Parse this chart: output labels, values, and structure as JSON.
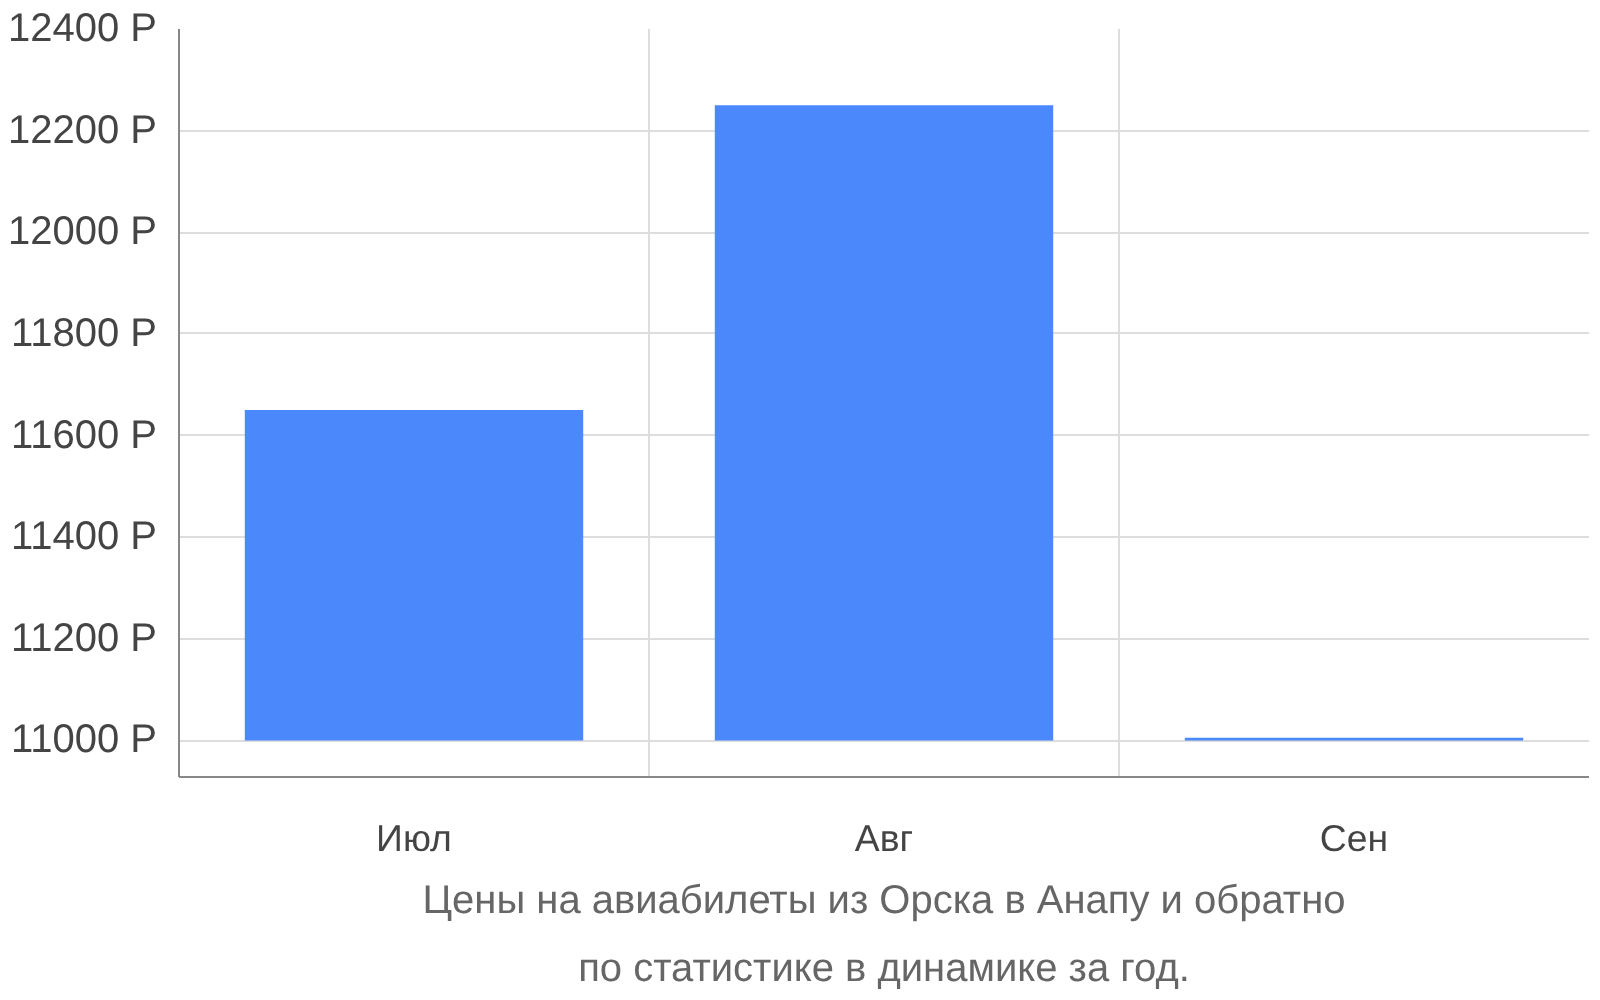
{
  "chart_data": {
    "type": "bar",
    "categories": [
      "Июл",
      "Авг",
      "Сен"
    ],
    "base": [
      11000,
      11000,
      11000
    ],
    "values": [
      650,
      1250,
      5
    ],
    "color": "#4a88fb",
    "ylim": [
      10928,
      12400
    ],
    "yticks": [
      {
        "value": 11000,
        "label": "11000 Р"
      },
      {
        "value": 11200,
        "label": "11200 Р"
      },
      {
        "value": 11400,
        "label": "11400 Р"
      },
      {
        "value": 11600,
        "label": "11600 Р"
      },
      {
        "value": 11800,
        "label": "11800 Р"
      },
      {
        "value": 12000,
        "label": "12000 Р"
      },
      {
        "value": 12200,
        "label": "12200 Р"
      },
      {
        "value": 12400,
        "label": "12400 Р"
      }
    ],
    "grid": true,
    "annotations": [
      "Цены на авиабилеты из Орска в Анапу и обратно",
      "по статистике в динамике за год."
    ]
  }
}
